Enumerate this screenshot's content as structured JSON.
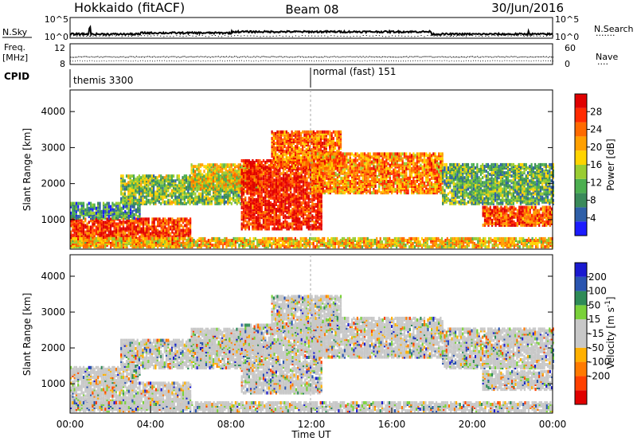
{
  "header": {
    "title_left": "Hokkaido (fitACF)",
    "title_center": "Beam 08",
    "title_right": "30/Jun/2016"
  },
  "strip_labels": {
    "nsky": "N.Sky",
    "freq": "Freq.",
    "freq_unit": "[MHz]",
    "cpid": "CPID",
    "nsearch": "N.Search",
    "nave": "Nave"
  },
  "strip_ticks": {
    "nsky_top": "10^5",
    "nsky_bottom": "10^0",
    "nsearch_top": "10^5",
    "nsearch_bottom": "10^0",
    "freq_top": "12",
    "freq_bottom": "8",
    "nave_top": "60",
    "nave_bottom": "0"
  },
  "cpid": {
    "left": "themis 3300",
    "right": "normal (fast) 151"
  },
  "colors": {
    "power_scale": [
      "#1c1cff",
      "#2e5fa8",
      "#3a8a5a",
      "#4caf50",
      "#9acd32",
      "#ffd400",
      "#ffa000",
      "#ff6a00",
      "#ff2a00",
      "#e00000"
    ],
    "velocity_scale": [
      "#1a1ad0",
      "#2a55b0",
      "#2e8b57",
      "#7ad13a",
      "#c8c8c8",
      "#c8c8c8",
      "#ffb000",
      "#ff7a00",
      "#ff4000",
      "#e00000"
    ],
    "cpid_line": "#aaaaaa"
  },
  "chart_data": [
    {
      "type": "heatmap",
      "name": "power",
      "ylabel": "Slant Range [km]",
      "yticks": [
        1000,
        2000,
        3000,
        4000
      ],
      "ylim": [
        180,
        4600
      ],
      "xlim": [
        "00:00",
        "24:00"
      ],
      "colorbar": {
        "label": "Power [dB]",
        "range": [
          0,
          32
        ],
        "ticks": [
          "4",
          "8",
          "12",
          "16",
          "20",
          "24",
          "28"
        ]
      },
      "regions": [
        {
          "t0": 0.0,
          "t1": 6.0,
          "r0": 250,
          "r1": 1000,
          "level": 0.85
        },
        {
          "t0": 0.0,
          "t1": 3.5,
          "r0": 1000,
          "r1": 1450,
          "level": 0.25
        },
        {
          "t0": 2.5,
          "t1": 8.5,
          "r0": 1400,
          "r1": 2200,
          "level": 0.4
        },
        {
          "t0": 6.0,
          "t1": 9.5,
          "r0": 1800,
          "r1": 2500,
          "level": 0.55
        },
        {
          "t0": 8.5,
          "t1": 12.5,
          "r0": 700,
          "r1": 2600,
          "level": 0.9
        },
        {
          "t0": 10.0,
          "t1": 13.5,
          "r0": 2400,
          "r1": 3400,
          "level": 0.75
        },
        {
          "t0": 12.0,
          "t1": 18.5,
          "r0": 1700,
          "r1": 2800,
          "level": 0.7
        },
        {
          "t0": 18.5,
          "t1": 24.0,
          "r0": 1400,
          "r1": 2500,
          "level": 0.35
        },
        {
          "t0": 20.5,
          "t1": 24.0,
          "r0": 800,
          "r1": 1300,
          "level": 0.8
        },
        {
          "t0": 0.0,
          "t1": 24.0,
          "r0": 200,
          "r1": 450,
          "level": 0.6
        }
      ]
    },
    {
      "type": "heatmap",
      "name": "velocity",
      "ylabel": "Slant Range [km]",
      "yticks": [
        1000,
        2000,
        3000,
        4000
      ],
      "ylim": [
        180,
        4600
      ],
      "xlim": [
        "00:00",
        "24:00"
      ],
      "xticks": [
        "00:00",
        "04:00",
        "08:00",
        "12:00",
        "16:00",
        "20:00",
        "00:00"
      ],
      "xlabel": "Time UT",
      "colorbar": {
        "label": "Velocity [m s-1]",
        "range": [
          -250,
          250
        ],
        "ticks": [
          "200",
          "100",
          "50",
          "15",
          "-15",
          "-50",
          "-100",
          "-200"
        ]
      },
      "regions": [
        {
          "t0": 0.0,
          "t1": 6.0,
          "r0": 250,
          "r1": 1000,
          "level": 0.5
        },
        {
          "t0": 0.0,
          "t1": 3.5,
          "r0": 1000,
          "r1": 1450,
          "level": 0.5
        },
        {
          "t0": 2.5,
          "t1": 8.5,
          "r0": 1400,
          "r1": 2200,
          "level": 0.5
        },
        {
          "t0": 6.0,
          "t1": 9.5,
          "r0": 1800,
          "r1": 2500,
          "level": 0.5
        },
        {
          "t0": 8.5,
          "t1": 12.5,
          "r0": 700,
          "r1": 2600,
          "level": 0.5
        },
        {
          "t0": 10.0,
          "t1": 13.5,
          "r0": 2400,
          "r1": 3400,
          "level": 0.5
        },
        {
          "t0": 12.0,
          "t1": 18.5,
          "r0": 1700,
          "r1": 2800,
          "level": 0.55
        },
        {
          "t0": 18.5,
          "t1": 24.0,
          "r0": 1400,
          "r1": 2500,
          "level": 0.5
        },
        {
          "t0": 20.5,
          "t1": 24.0,
          "r0": 800,
          "r1": 1300,
          "level": 0.5
        },
        {
          "t0": 0.0,
          "t1": 24.0,
          "r0": 200,
          "r1": 450,
          "level": 0.35
        }
      ]
    }
  ]
}
